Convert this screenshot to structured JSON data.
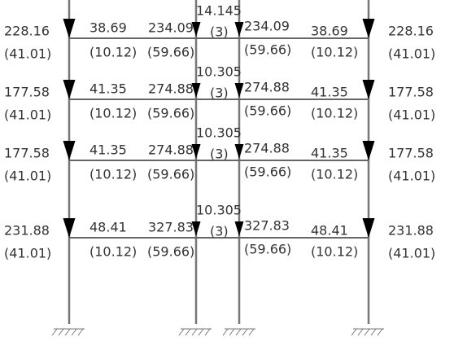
{
  "floors": [
    {
      "labels": [
        "228.16",
        "(41.01)",
        "38.69",
        "(10.12)",
        "234.09",
        "(59.66)",
        "14.145",
        "(3)",
        "234.09",
        "(59.66)",
        "38.69",
        "(10.12)",
        "228.16",
        "(41.01)"
      ]
    },
    {
      "labels": [
        "177.58",
        "(41.01)",
        "41.35",
        "(10.12)",
        "274.88",
        "(59.66)",
        "10.305",
        "(3)",
        "274.88",
        "(59.66)",
        "41.35",
        "(10.12)",
        "177.58",
        "(41.01)"
      ]
    },
    {
      "labels": [
        "177.58",
        "(41.01)",
        "41.35",
        "(10.12)",
        "274.88",
        "(59.66)",
        "10.305",
        "(3)",
        "274.88",
        "(59.66)",
        "41.35",
        "(10.12)",
        "177.58",
        "(41.01)"
      ]
    },
    {
      "labels": [
        "231.88",
        "(41.01)",
        "48.41",
        "(10.12)",
        "327.83",
        "(59.66)",
        "10.305",
        "(3)",
        "327.83",
        "(59.66)",
        "48.41",
        "(10.12)",
        "231.88",
        "(41.01)"
      ]
    }
  ]
}
